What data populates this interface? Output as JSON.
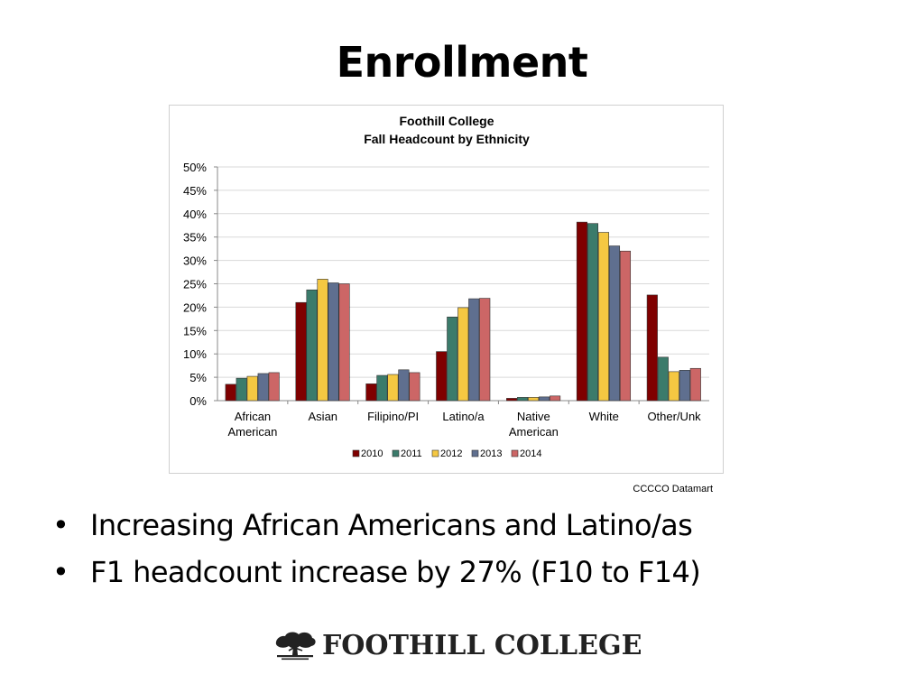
{
  "slide": {
    "title": "Enrollment"
  },
  "chart_data": {
    "type": "bar",
    "title": "Foothill College",
    "subtitle": "Fall Headcount by Ethnicity",
    "categories": [
      "African American",
      "Asian",
      "Filipino/PI",
      "Latino/a",
      "Native American",
      "White",
      "Other/Unk"
    ],
    "category_lines": [
      [
        "African",
        "American"
      ],
      [
        "Asian"
      ],
      [
        "Filipino/PI"
      ],
      [
        "Latino/a"
      ],
      [
        "Native",
        "American"
      ],
      [
        "White"
      ],
      [
        "Other/Unk"
      ]
    ],
    "series": [
      {
        "name": "2010",
        "color": "#7f0000",
        "values": [
          3.5,
          21.0,
          3.6,
          10.5,
          0.5,
          38.2,
          22.6
        ]
      },
      {
        "name": "2011",
        "color": "#3b7b6b",
        "values": [
          4.8,
          23.7,
          5.4,
          17.9,
          0.7,
          37.9,
          9.3
        ]
      },
      {
        "name": "2012",
        "color": "#f5c842",
        "values": [
          5.2,
          26.0,
          5.6,
          19.9,
          0.7,
          36.0,
          6.2
        ]
      },
      {
        "name": "2013",
        "color": "#5f6f8f",
        "values": [
          5.8,
          25.2,
          6.6,
          21.8,
          0.8,
          33.1,
          6.5
        ]
      },
      {
        "name": "2014",
        "color": "#cc6666",
        "values": [
          6.0,
          25.0,
          6.0,
          21.9,
          1.0,
          32.0,
          6.9
        ]
      }
    ],
    "ylim": [
      0,
      50
    ],
    "yticks": [
      "0%",
      "5%",
      "10%",
      "15%",
      "20%",
      "25%",
      "30%",
      "35%",
      "40%",
      "45%",
      "50%"
    ],
    "ytick_values": [
      0,
      5,
      10,
      15,
      20,
      25,
      30,
      35,
      40,
      45,
      50
    ],
    "xlabel": "",
    "ylabel": "",
    "grid": true,
    "legend": "bottom-center"
  },
  "source": "CCCCO Datamart",
  "bullets": [
    "Increasing African Americans and Latino/as",
    "F1 headcount increase by 27% (F10 to F14)"
  ],
  "bullet_symbol": "•",
  "logo": {
    "text": "FOOTHILL COLLEGE"
  }
}
